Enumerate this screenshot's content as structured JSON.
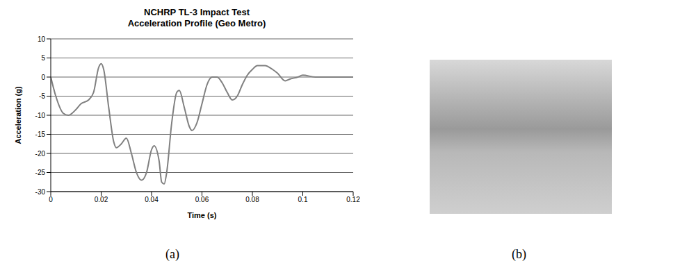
{
  "chart_data": {
    "type": "line",
    "title": "NCHRP TL-3 Impact Test\nAcceleration Profile (Geo Metro)",
    "x_label": "Time (s)",
    "y_label": "Acceleration (g)",
    "x": [
      0,
      0.002,
      0.005,
      0.007,
      0.01,
      0.012,
      0.015,
      0.017,
      0.019,
      0.02,
      0.021,
      0.023,
      0.025,
      0.026,
      0.028,
      0.03,
      0.032,
      0.034,
      0.036,
      0.038,
      0.04,
      0.041,
      0.043,
      0.044,
      0.045,
      0.046,
      0.048,
      0.05,
      0.051,
      0.053,
      0.055,
      0.056,
      0.058,
      0.06,
      0.062,
      0.064,
      0.066,
      0.068,
      0.07,
      0.072,
      0.074,
      0.076,
      0.078,
      0.08,
      0.082,
      0.085,
      0.088,
      0.09,
      0.093,
      0.095,
      0.098,
      0.1,
      0.105,
      0.11,
      0.12
    ],
    "values": [
      0,
      -5,
      -9.5,
      -10,
      -8.5,
      -7,
      -6,
      -4,
      2.5,
      3.5,
      2,
      -8,
      -17,
      -18.5,
      -17.5,
      -16,
      -20,
      -25,
      -27,
      -25,
      -19,
      -18,
      -22,
      -27.5,
      -28,
      -25,
      -12,
      -4,
      -3.5,
      -8,
      -13,
      -14,
      -12,
      -7,
      -2,
      0,
      0,
      -1.5,
      -4,
      -6,
      -5,
      -2,
      0.5,
      2,
      3,
      3,
      2,
      1,
      -1,
      -0.5,
      0,
      0.5,
      0,
      0,
      0
    ],
    "color": "#808080",
    "xlim": [
      0,
      0.12
    ],
    "xticks": [
      0,
      0.02,
      0.04,
      0.06,
      0.08,
      0.1,
      0.12
    ],
    "ylim": [
      -30,
      10
    ],
    "yticks": [
      -30,
      -25,
      -20,
      -15,
      -10,
      -5,
      0,
      5,
      10
    ],
    "grid": true
  },
  "captions": [
    "(a)",
    "(b)"
  ]
}
